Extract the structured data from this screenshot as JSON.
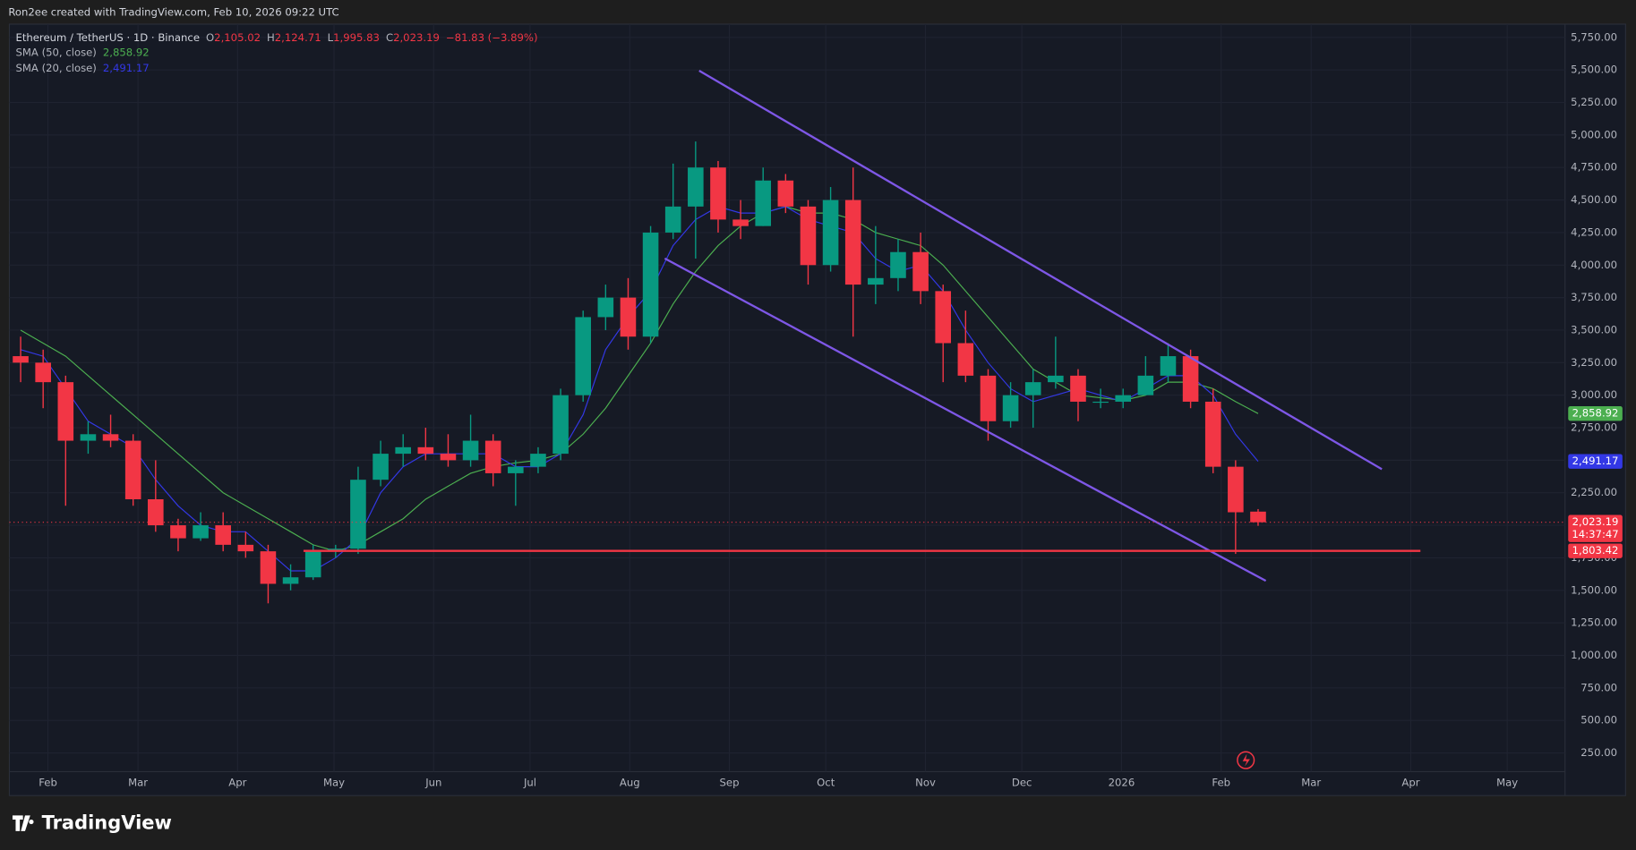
{
  "header": {
    "credit": "Ron2ee created with TradingView.com, Feb 10, 2026 09:22 UTC"
  },
  "chart_data": {
    "type": "candlestick",
    "title": "Ethereum / TetherUS · 1D · Binance",
    "ohlc_legend": [
      {
        "label": "O",
        "value": "2,105.02"
      },
      {
        "label": "H",
        "value": "2,124.71"
      },
      {
        "label": "L",
        "value": "1,995.83"
      },
      {
        "label": "C",
        "value": "2,023.19"
      }
    ],
    "change": "−81.83 (−3.89%)",
    "x": [
      -12,
      -5,
      2,
      9,
      16,
      23,
      30,
      37,
      44,
      51,
      58,
      65,
      72,
      79,
      86,
      93,
      100,
      107,
      114,
      121,
      128,
      135,
      142,
      149,
      156,
      163,
      170,
      177,
      184,
      191,
      198,
      205,
      212,
      219,
      226,
      233,
      240,
      247,
      254,
      261,
      268,
      275,
      282,
      289,
      296,
      303,
      310,
      317,
      324,
      331,
      338,
      345,
      352,
      359,
      366,
      373
    ],
    "open": [
      3300,
      3250,
      3100,
      2650,
      2700,
      2650,
      2200,
      2000,
      1900,
      2000,
      1850,
      1800,
      1550,
      1600,
      1800,
      1820,
      2350,
      2550,
      2600,
      2550,
      2500,
      2650,
      2400,
      2450,
      2550,
      3000,
      3600,
      3750,
      3450,
      4250,
      4450,
      4750,
      4350,
      4300,
      4650,
      4450,
      4000,
      4500,
      3850,
      3900,
      4100,
      3800,
      3400,
      3150,
      2800,
      3000,
      3100,
      3150,
      2950,
      2950,
      3000,
      3150,
      3300,
      2950,
      2450,
      2105.02
    ],
    "high": [
      3450,
      3350,
      3150,
      2800,
      2850,
      2700,
      2500,
      2050,
      2100,
      2100,
      1950,
      1850,
      1700,
      1850,
      1850,
      2450,
      2650,
      2700,
      2750,
      2700,
      2850,
      2700,
      2500,
      2600,
      3050,
      3650,
      3850,
      3900,
      4300,
      4780,
      4950,
      4800,
      4500,
      4750,
      4700,
      4500,
      4600,
      4750,
      4300,
      4200,
      4250,
      3850,
      3650,
      3200,
      3100,
      3200,
      3450,
      3200,
      3050,
      3050,
      3300,
      3400,
      3350,
      3050,
      2500,
      2124.71
    ],
    "low": [
      3100,
      2900,
      2150,
      2550,
      2600,
      2150,
      1950,
      1800,
      1880,
      1800,
      1750,
      1400,
      1500,
      1580,
      1750,
      1780,
      2300,
      2450,
      2500,
      2450,
      2450,
      2300,
      2150,
      2400,
      2500,
      2950,
      3500,
      3350,
      3400,
      4200,
      4050,
      4250,
      4200,
      4300,
      4400,
      3850,
      3950,
      3450,
      3700,
      3800,
      3700,
      3100,
      3100,
      2650,
      2750,
      2750,
      3050,
      2800,
      2900,
      2900,
      3000,
      3100,
      2900,
      2400,
      1780,
      1995.83
    ],
    "close": [
      3250,
      3100,
      2650,
      2700,
      2650,
      2200,
      2000,
      1900,
      2000,
      1850,
      1800,
      1550,
      1600,
      1800,
      1820,
      2350,
      2550,
      2600,
      2550,
      2500,
      2650,
      2400,
      2450,
      2550,
      3000,
      3600,
      3750,
      3450,
      4250,
      4450,
      4750,
      4350,
      4300,
      4650,
      4450,
      4000,
      4500,
      3850,
      3900,
      4100,
      3800,
      3400,
      3150,
      2800,
      3000,
      3100,
      3150,
      2950,
      2950,
      3000,
      3150,
      3300,
      2950,
      2450,
      2100,
      2023.19
    ],
    "up_color": "#089981",
    "down_color": "#f23645",
    "series": [
      {
        "name": "SMA (50, close)",
        "color": "#4caf50",
        "value_label": "2,858.92",
        "values": [
          3500,
          3400,
          3300,
          3150,
          3000,
          2850,
          2700,
          2550,
          2400,
          2250,
          2150,
          2050,
          1950,
          1850,
          1800,
          1850,
          1950,
          2050,
          2200,
          2300,
          2400,
          2450,
          2480,
          2500,
          2550,
          2700,
          2900,
          3150,
          3400,
          3700,
          3950,
          4150,
          4300,
          4400,
          4450,
          4400,
          4400,
          4350,
          4250,
          4200,
          4150,
          4000,
          3800,
          3600,
          3400,
          3200,
          3100,
          3000,
          2980,
          2960,
          3000,
          3100,
          3100,
          3050,
          2950,
          2858.92
        ]
      },
      {
        "name": "SMA (20, close)",
        "color": "#3338e6",
        "value_label": "2,491.17",
        "values": [
          3350,
          3300,
          3050,
          2800,
          2700,
          2600,
          2350,
          2150,
          2000,
          1950,
          1950,
          1800,
          1650,
          1650,
          1750,
          1900,
          2250,
          2450,
          2550,
          2550,
          2550,
          2550,
          2450,
          2450,
          2550,
          2850,
          3350,
          3600,
          3800,
          4150,
          4350,
          4450,
          4400,
          4400,
          4450,
          4350,
          4300,
          4250,
          4050,
          3950,
          4000,
          3800,
          3500,
          3250,
          3050,
          2950,
          3000,
          3050,
          3000,
          2950,
          3050,
          3150,
          3150,
          3000,
          2700,
          2491.17
        ]
      }
    ],
    "last_price_label": "2,023.19",
    "countdown": "14:37:47",
    "trendlines": [
      {
        "color": "#7e57e6",
        "points": [
          [
            202.6,
            5494
          ],
          [
            415,
            2431
          ]
        ]
      },
      {
        "color": "#7e57e6",
        "points": [
          [
            191.9,
            4051
          ],
          [
            378.9,
            1573
          ]
        ]
      }
    ],
    "level": {
      "value": 1803.42,
      "label": "1,803.42",
      "x": [
        79.5,
        427
      ],
      "color": "#f23645"
    },
    "xlim": [
      -12,
      472
    ],
    "ylim": [
      -70,
      5860
    ],
    "xticks": [
      {
        "value": 0,
        "label": "Feb"
      },
      {
        "value": 28,
        "label": "Mar"
      },
      {
        "value": 59,
        "label": "Apr"
      },
      {
        "value": 89,
        "label": "May"
      },
      {
        "value": 120,
        "label": "Jun"
      },
      {
        "value": 150,
        "label": "Jul"
      },
      {
        "value": 181,
        "label": "Aug"
      },
      {
        "value": 212,
        "label": "Sep"
      },
      {
        "value": 242,
        "label": "Oct"
      },
      {
        "value": 273,
        "label": "Nov"
      },
      {
        "value": 303,
        "label": "Dec"
      },
      {
        "value": 334,
        "label": "2026"
      },
      {
        "value": 365,
        "label": "Feb"
      },
      {
        "value": 393,
        "label": "Mar"
      },
      {
        "value": 424,
        "label": "Apr"
      },
      {
        "value": 454,
        "label": "May"
      }
    ],
    "yticks": [
      {
        "value": 250,
        "label": "250.00"
      },
      {
        "value": 500,
        "label": "500.00"
      },
      {
        "value": 750,
        "label": "750.00"
      },
      {
        "value": 1000,
        "label": "1,000.00"
      },
      {
        "value": 1250,
        "label": "1,250.00"
      },
      {
        "value": 1500,
        "label": "1,500.00"
      },
      {
        "value": 1750,
        "label": "1,750.00"
      },
      {
        "value": 2000,
        "label": "2,000.00"
      },
      {
        "value": 2250,
        "label": "2,250.00"
      },
      {
        "value": 2500,
        "label": "2,500.00"
      },
      {
        "value": 2750,
        "label": "2,750.00"
      },
      {
        "value": 3000,
        "label": "3,000.00"
      },
      {
        "value": 3250,
        "label": "3,250.00"
      },
      {
        "value": 3500,
        "label": "3,500.00"
      },
      {
        "value": 3750,
        "label": "3,750.00"
      },
      {
        "value": 4000,
        "label": "4,000.00"
      },
      {
        "value": 4250,
        "label": "4,250.00"
      },
      {
        "value": 4500,
        "label": "4,500.00"
      },
      {
        "value": 4750,
        "label": "4,750.00"
      },
      {
        "value": 5000,
        "label": "5,000.00"
      },
      {
        "value": 5250,
        "label": "5,250.00"
      },
      {
        "value": 5500,
        "label": "5,500.00"
      },
      {
        "value": 5750,
        "label": "5,750.00"
      }
    ],
    "grid": true
  },
  "footer": {
    "logo": "TradingView"
  }
}
